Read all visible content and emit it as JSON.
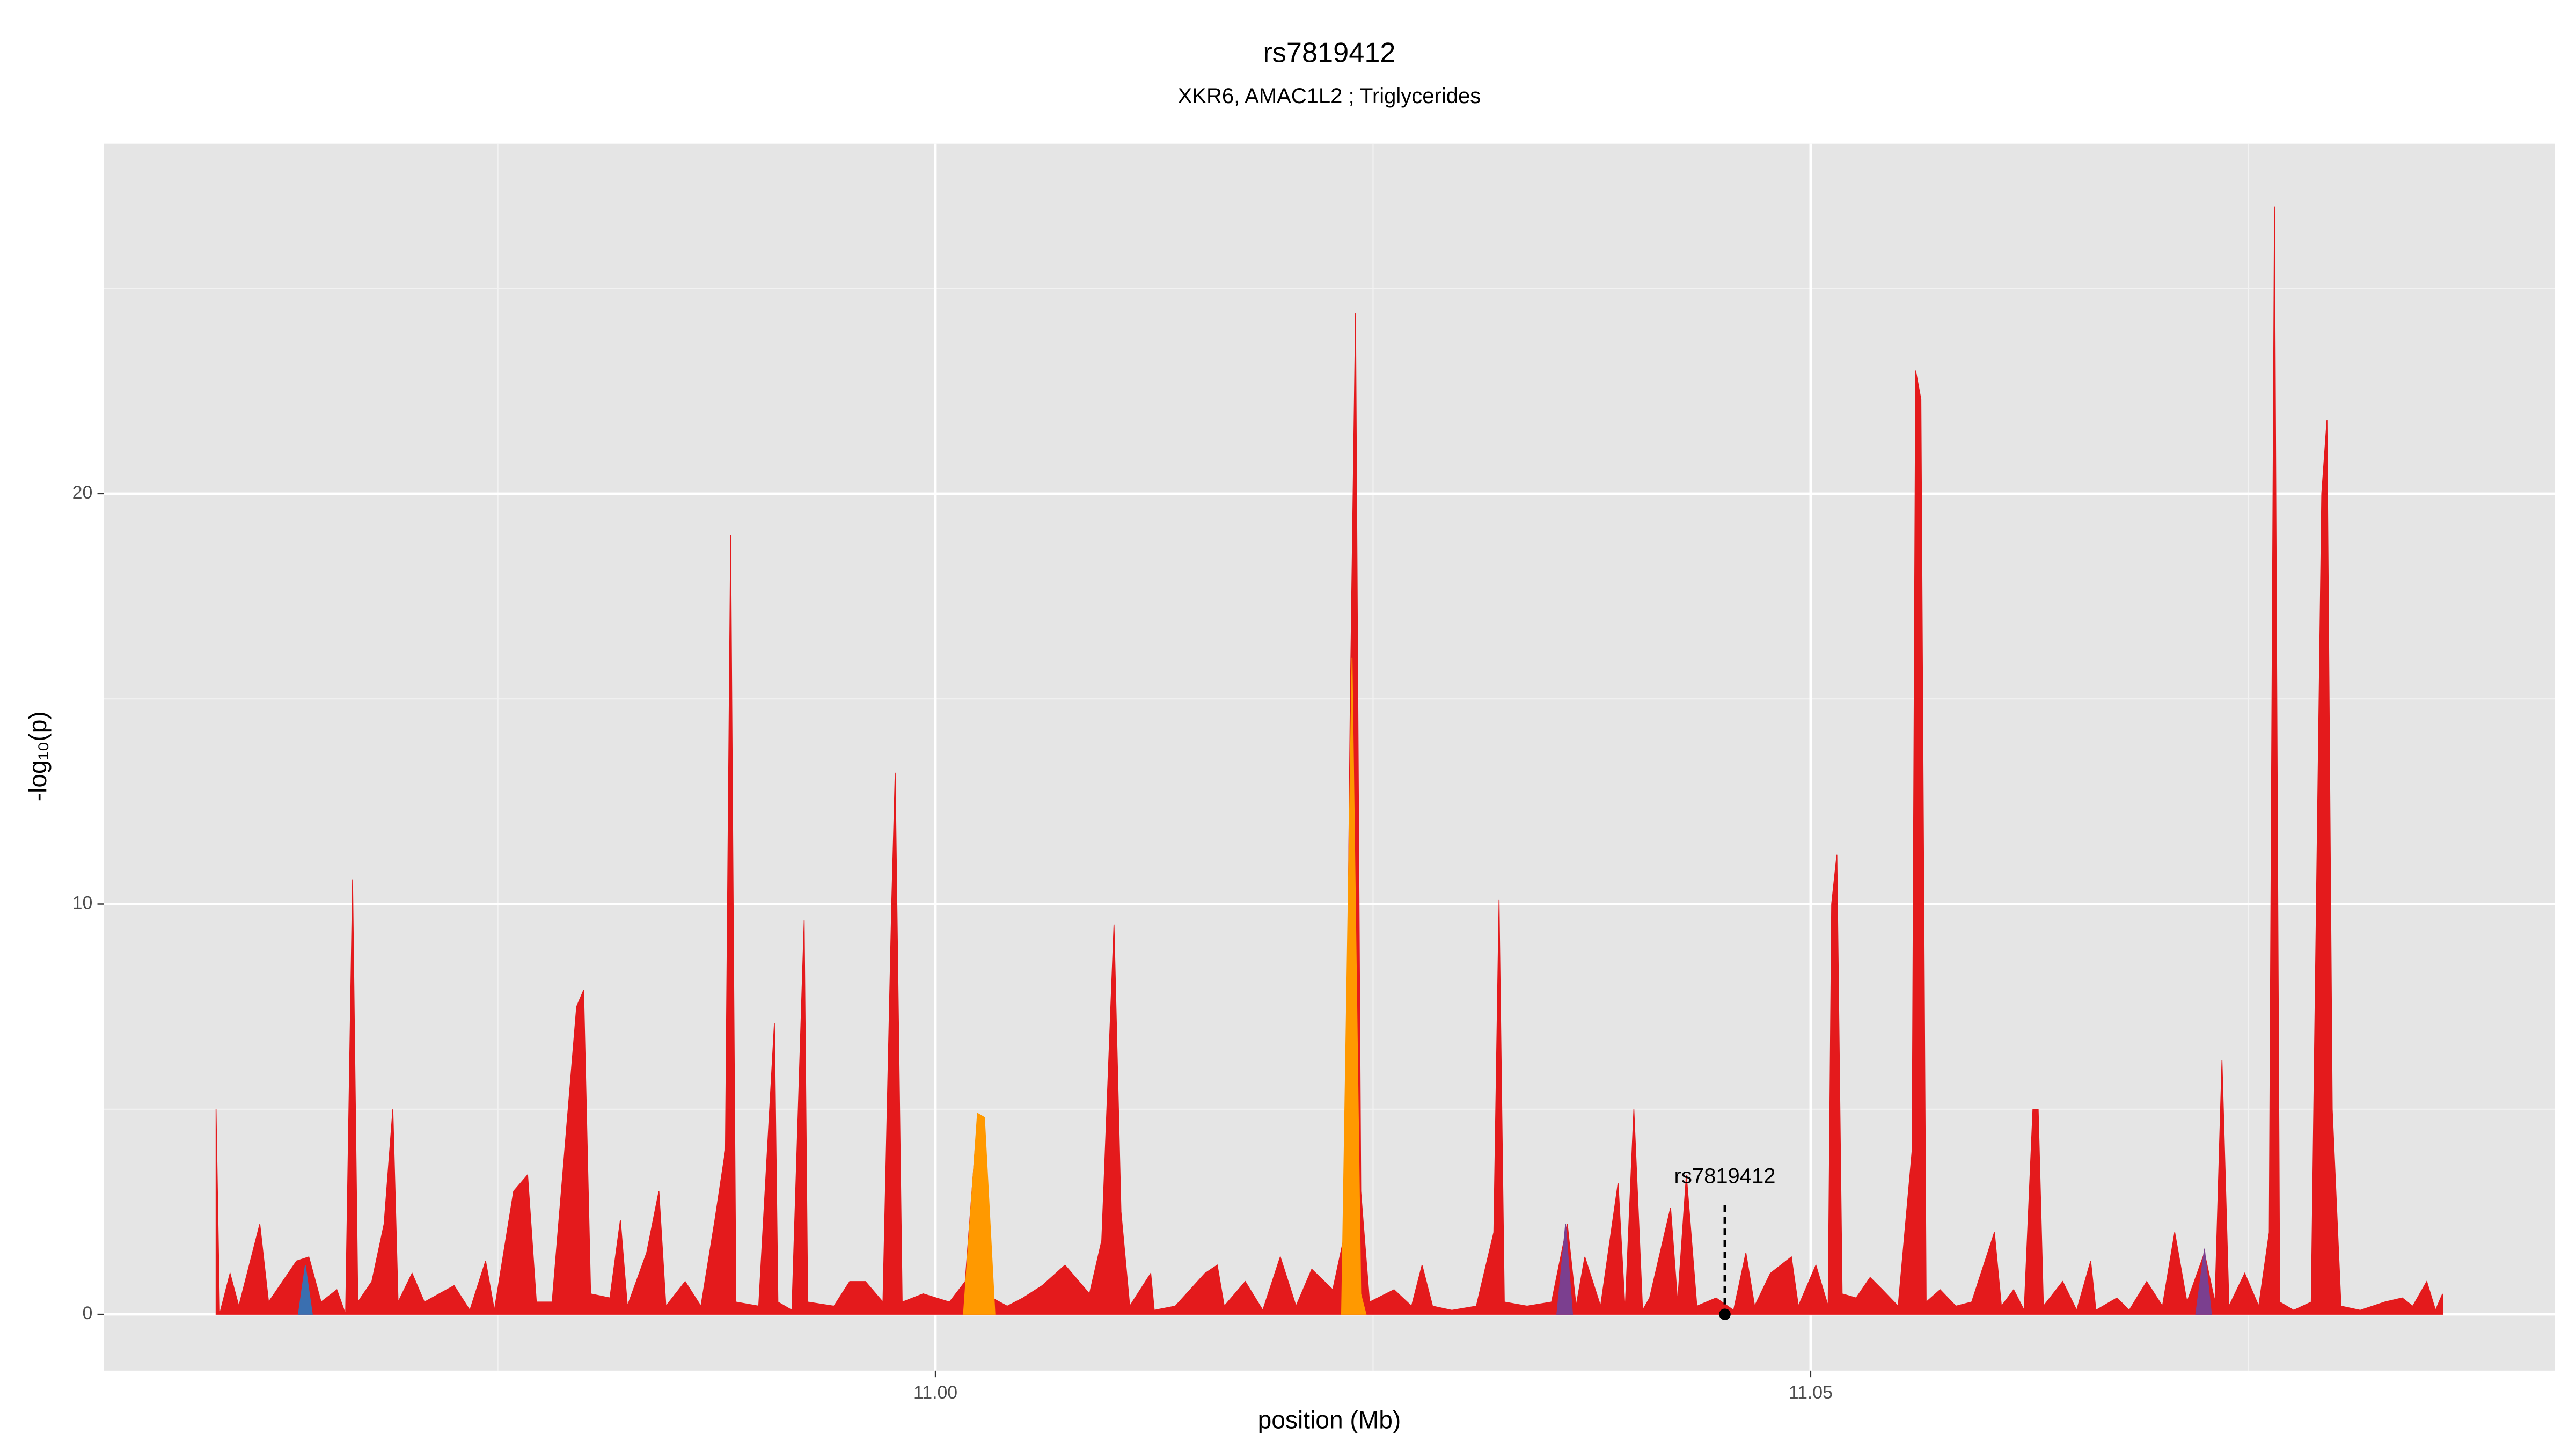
{
  "chart_data": {
    "type": "area",
    "title": "rs7819412",
    "subtitle": "XKR6, AMAC1L2 ; Triglycerides",
    "x_label": "position (Mb)",
    "y_label": "-log₁₀(p)",
    "xlim": [
      10.9525,
      11.0925
    ],
    "ylim": [
      -1.37,
      28.53
    ],
    "xticks": [
      {
        "value": 11.0,
        "label": "11.00"
      },
      {
        "value": 11.05,
        "label": "11.05"
      }
    ],
    "x_minor_ticks": [
      10.975,
      11.025,
      11.075
    ],
    "yticks": [
      0,
      10,
      20
    ],
    "y_minor_ticks": [
      5,
      15,
      25
    ],
    "grid": true,
    "series": [
      {
        "color": "#e41a1c",
        "x": [
          10.9589,
          10.9591,
          10.9597,
          10.9602,
          10.9614,
          10.9619,
          10.9635,
          10.9642,
          10.9649,
          10.9658,
          10.9663,
          10.9667,
          10.967,
          10.9678,
          10.9685,
          10.969,
          10.9693,
          10.9701,
          10.9708,
          10.9725,
          10.9734,
          10.9743,
          10.9748,
          10.9759,
          10.9767,
          10.9772,
          10.9781,
          10.9795,
          10.9799,
          10.9803,
          10.9814,
          10.982,
          10.9824,
          10.9835,
          10.9842,
          10.9846,
          10.9857,
          10.9866,
          10.9874,
          10.988,
          10.9883,
          10.9886,
          10.9899,
          10.9908,
          10.991,
          10.9918,
          10.9925,
          10.9927,
          10.9942,
          10.9951,
          10.996,
          10.997,
          10.9975,
          10.9977,
          10.9981,
          10.9993,
          11.0008,
          11.0017,
          11.0024,
          11.0028,
          11.0041,
          11.005,
          11.0061,
          11.0074,
          11.0088,
          11.0095,
          11.0102,
          11.0106,
          11.0111,
          11.0123,
          11.0125,
          11.0137,
          11.0154,
          11.0161,
          11.0165,
          11.0177,
          11.0187,
          11.0197,
          11.0206,
          11.0215,
          11.0227,
          11.0234,
          11.0237,
          11.024,
          11.0243,
          11.0248,
          11.0262,
          11.0272,
          11.0278,
          11.0284,
          11.0295,
          11.0309,
          11.0319,
          11.0322,
          11.0325,
          11.0338,
          11.0352,
          11.0361,
          11.0366,
          11.0371,
          11.038,
          11.039,
          11.0394,
          11.0399,
          11.0404,
          11.0408,
          11.042,
          11.0424,
          11.0429,
          11.0435,
          11.0446,
          11.0456,
          11.0463,
          11.0468,
          11.0477,
          11.0489,
          11.0493,
          11.0503,
          11.051,
          11.0512,
          11.0515,
          11.0518,
          11.0526,
          11.0534,
          11.0541,
          11.055,
          11.0558,
          11.056,
          11.0563,
          11.0566,
          11.0574,
          11.0583,
          11.0592,
          11.0605,
          11.0609,
          11.0616,
          11.0622,
          11.0627,
          11.063,
          11.0633,
          11.0644,
          11.0652,
          11.066,
          11.0663,
          11.0675,
          11.0682,
          11.0692,
          11.0701,
          11.0708,
          11.0715,
          11.0725,
          11.0731,
          11.0735,
          11.0739,
          11.0748,
          11.0756,
          11.0762,
          11.0765,
          11.0768,
          11.0776,
          11.0786,
          11.0792,
          11.0795,
          11.0798,
          11.0803,
          11.0814,
          11.0828,
          11.0838,
          11.0844,
          11.0852,
          11.0857,
          11.0861
        ],
        "values": [
          5.0,
          0,
          1.0,
          0.2,
          2.2,
          0.3,
          1.3,
          1.4,
          0.3,
          0.6,
          0,
          10.6,
          0.3,
          0.8,
          2.2,
          5.0,
          0.3,
          1.0,
          0.3,
          0.7,
          0.1,
          1.3,
          0.1,
          3.0,
          3.4,
          0.3,
          0.3,
          7.5,
          7.9,
          0.5,
          0.4,
          2.3,
          0.2,
          1.5,
          3.0,
          0.2,
          0.8,
          0.2,
          2.3,
          4.0,
          19.0,
          0.3,
          0.2,
          7.1,
          0.3,
          0.1,
          9.6,
          0.3,
          0.2,
          0.8,
          0.8,
          0.3,
          10.0,
          13.2,
          0.3,
          0.5,
          0.3,
          0.8,
          4.8,
          0.5,
          0.2,
          0.4,
          0.7,
          1.2,
          0.5,
          1.8,
          9.5,
          2.5,
          0.2,
          1.0,
          0.1,
          0.2,
          1.0,
          1.2,
          0.2,
          0.8,
          0.1,
          1.4,
          0.2,
          1.1,
          0.6,
          2.0,
          15.0,
          24.4,
          3.0,
          0.3,
          0.6,
          0.2,
          1.2,
          0.2,
          0.1,
          0.2,
          2.0,
          10.1,
          0.3,
          0.2,
          0.3,
          2.2,
          0.2,
          1.4,
          0.2,
          3.2,
          0.1,
          5.0,
          0.1,
          0.4,
          2.6,
          0.3,
          3.4,
          0.2,
          0.4,
          0.1,
          1.5,
          0.2,
          1.0,
          1.4,
          0.2,
          1.2,
          0.2,
          10.0,
          11.2,
          0.5,
          0.4,
          0.9,
          0.6,
          0.2,
          4.0,
          23.0,
          22.3,
          0.3,
          0.6,
          0.2,
          0.3,
          2.0,
          0.2,
          0.6,
          0.1,
          5.0,
          5.0,
          0.2,
          0.8,
          0.1,
          1.3,
          0.1,
          0.4,
          0.1,
          0.8,
          0.2,
          2.0,
          0.3,
          1.5,
          0.3,
          6.2,
          0.2,
          1.0,
          0.2,
          2.0,
          27.0,
          0.3,
          0.1,
          0.3,
          20.0,
          21.8,
          5.0,
          0.2,
          0.1,
          0.3,
          0.4,
          0.2,
          0.8,
          0.1,
          0.5
        ]
      },
      {
        "color": "#ff9900",
        "x": [
          11.0016,
          11.0024,
          11.0028,
          11.0034,
          11.023,
          11.0232,
          11.0238,
          11.0243,
          11.0246
        ],
        "values": [
          0,
          4.9,
          4.8,
          0,
          null,
          0,
          16.0,
          0.5,
          0
        ]
      },
      {
        "color": "#7b3f8f",
        "x": [
          11.0355,
          11.036,
          11.0364,
          11.05,
          11.072,
          11.0725,
          11.0729
        ],
        "values": [
          0,
          2.2,
          0,
          null,
          0,
          1.6,
          0
        ]
      },
      {
        "color": "#3a6fb0",
        "x": [
          10.9636,
          10.964,
          10.9644
        ],
        "values": [
          0,
          1.2,
          0
        ]
      }
    ],
    "annotation": {
      "label": "rs7819412",
      "x": 11.0451,
      "y": 0
    }
  }
}
